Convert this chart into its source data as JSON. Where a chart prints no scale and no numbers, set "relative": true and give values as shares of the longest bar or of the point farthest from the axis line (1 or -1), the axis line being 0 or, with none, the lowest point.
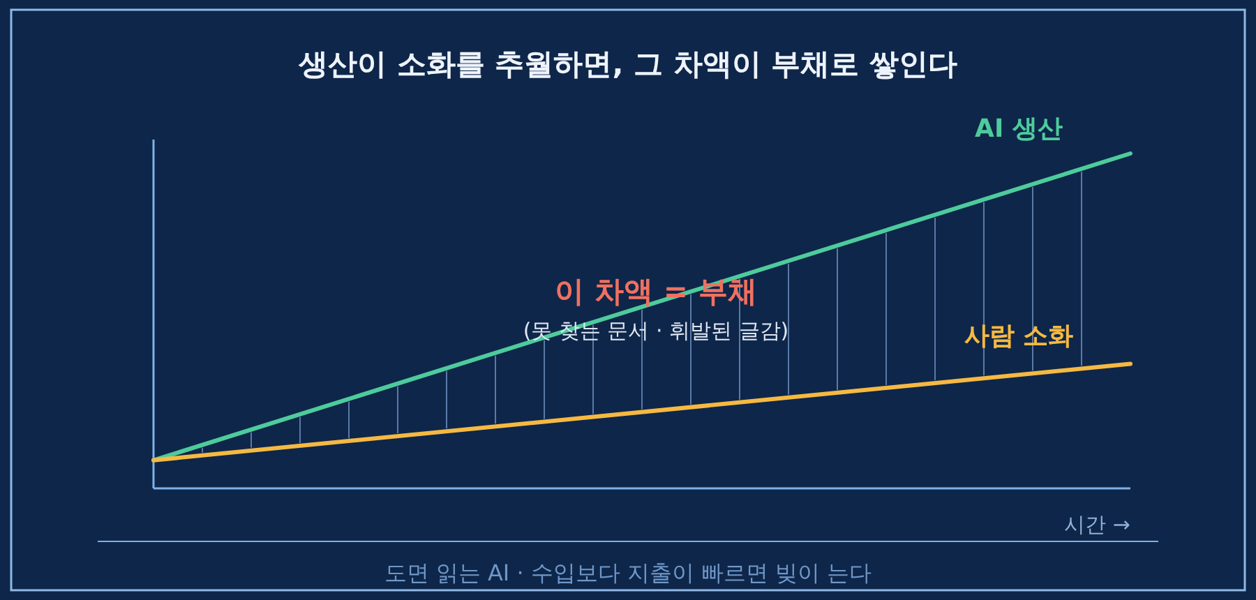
{
  "chart_data": {
    "type": "line",
    "relative": true,
    "title": "생산이 소화를 추월하면, 그 차액이 부채로 쌓인다",
    "categories": [
      null,
      null
    ],
    "series": [
      {
        "name": "AI 생산",
        "color": "#4ecb9c",
        "values": [
          0.084,
          1
        ]
      },
      {
        "name": "사람 소화",
        "color": "#f5b942",
        "values": [
          0.084,
          0.372
        ]
      }
    ],
    "xlabel": "시간 →",
    "annotations": [
      "이 차액 = 부채",
      "(못 찾는 문서 · 휘발된 글감)",
      "도면 읽는 AI · 수입보다 지출이 빠르면 빚이 는다"
    ]
  }
}
